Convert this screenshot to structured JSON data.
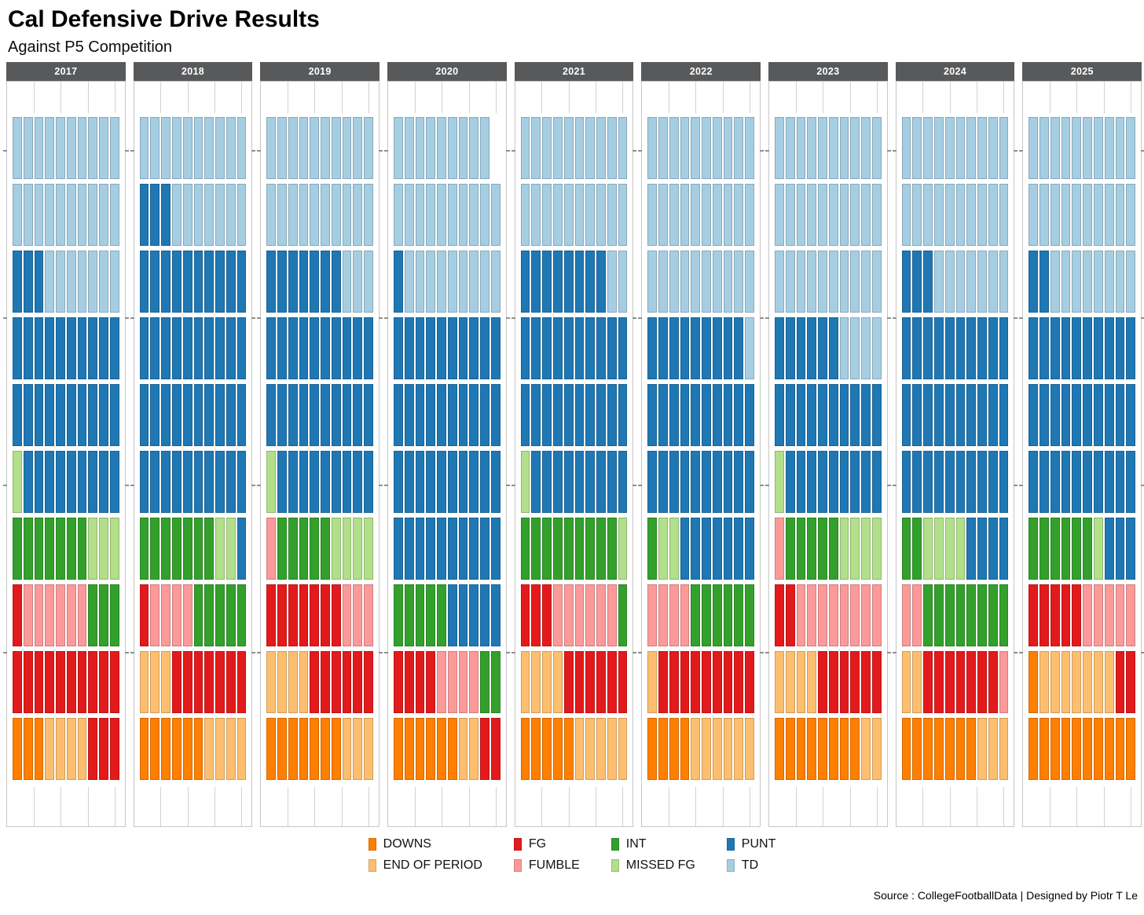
{
  "title": "Cal Defensive Drive Results",
  "subtitle": "Against P5 Competition",
  "source_credit": "Source : CollegeFootballData | Designed by Piotr T Le",
  "colors": {
    "DOWNS": "#FF7F00",
    "END OF PERIOD": "#FDBF6F",
    "FG": "#E31A1C",
    "FUMBLE": "#FB9A99",
    "INT": "#33A02C",
    "MISSED FG": "#B2DF8A",
    "PUNT": "#1F78B4",
    "TD": "#A6CEE3"
  },
  "legend": {
    "rows": [
      [
        "DOWNS",
        "FG",
        "INT",
        "PUNT"
      ],
      [
        "END OF PERIOD",
        "FUMBLE",
        "MISSED FG",
        "TD"
      ]
    ]
  },
  "chart_data": {
    "type": "waffle",
    "facet_years": [
      "2017",
      "2018",
      "2019",
      "2020",
      "2021",
      "2022",
      "2023",
      "2024",
      "2025"
    ],
    "fill_order": [
      "DOWNS",
      "END OF PERIOD",
      "FG",
      "FUMBLE",
      "INT",
      "MISSED FG",
      "PUNT",
      "TD"
    ],
    "tiles_per_row": 10,
    "fill_rule": "bottom-left origin, fills left-to-right then upward; 1 tile = 1 drive",
    "counts": {
      "2017": {
        "DOWNS": 3,
        "END OF PERIOD": 4,
        "FG": 14,
        "FUMBLE": 6,
        "INT": 10,
        "MISSED FG": 4,
        "PUNT": 32,
        "TD": 27
      },
      "2018": {
        "DOWNS": 6,
        "END OF PERIOD": 7,
        "FG": 8,
        "FUMBLE": 4,
        "INT": 12,
        "MISSED FG": 2,
        "PUNT": 44,
        "TD": 17
      },
      "2019": {
        "DOWNS": 7,
        "END OF PERIOD": 7,
        "FG": 13,
        "FUMBLE": 4,
        "INT": 5,
        "MISSED FG": 5,
        "PUNT": 36,
        "TD": 23
      },
      "2020": {
        "DOWNS": 6,
        "END OF PERIOD": 2,
        "FG": 6,
        "FUMBLE": 4,
        "INT": 7,
        "MISSED FG": 0,
        "PUNT": 46,
        "TD": 28
      },
      "2021": {
        "DOWNS": 5,
        "END OF PERIOD": 9,
        "FG": 9,
        "FUMBLE": 6,
        "INT": 10,
        "MISSED FG": 2,
        "PUNT": 37,
        "TD": 22
      },
      "2022": {
        "DOWNS": 4,
        "END OF PERIOD": 7,
        "FG": 9,
        "FUMBLE": 4,
        "INT": 7,
        "MISSED FG": 2,
        "PUNT": 36,
        "TD": 31
      },
      "2023": {
        "DOWNS": 8,
        "END OF PERIOD": 6,
        "FG": 8,
        "FUMBLE": 9,
        "INT": 5,
        "MISSED FG": 5,
        "PUNT": 25,
        "TD": 34
      },
      "2024": {
        "DOWNS": 7,
        "END OF PERIOD": 5,
        "FG": 7,
        "FUMBLE": 3,
        "INT": 10,
        "MISSED FG": 4,
        "PUNT": 37,
        "TD": 27
      },
      "2025": {
        "DOWNS": 11,
        "END OF PERIOD": 7,
        "FG": 7,
        "FUMBLE": 5,
        "INT": 6,
        "MISSED FG": 1,
        "PUNT": 35,
        "TD": 28
      }
    },
    "totals": {
      "2017": 100,
      "2018": 100,
      "2019": 100,
      "2020": 99,
      "2021": 100,
      "2022": 100,
      "2023": 100,
      "2024": 100,
      "2025": 100
    },
    "legend_position": "bottom-center",
    "grid": "faint x gridline stubs above and below each waffle; small y ticks on panel edges every 25 drives"
  }
}
